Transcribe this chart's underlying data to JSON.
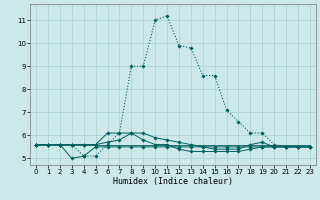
{
  "title": "",
  "xlabel": "Humidex (Indice chaleur)",
  "bg_color": "#cce8e8",
  "grid_color": "#aacfcf",
  "line_color": "#006060",
  "xlim": [
    -0.5,
    23.5
  ],
  "ylim": [
    4.7,
    11.7
  ],
  "xticks": [
    0,
    1,
    2,
    3,
    4,
    5,
    6,
    7,
    8,
    9,
    10,
    11,
    12,
    13,
    14,
    15,
    16,
    17,
    18,
    19,
    20,
    21,
    22,
    23
  ],
  "yticks": [
    5,
    6,
    7,
    8,
    9,
    10,
    11
  ],
  "series": [
    {
      "x": [
        0,
        1,
        2,
        3,
        4,
        5,
        6,
        7,
        8,
        9,
        10,
        11,
        12,
        13,
        14,
        15,
        16,
        17,
        18,
        19,
        20,
        21,
        22,
        23
      ],
      "y": [
        5.6,
        5.6,
        5.6,
        5.6,
        5.1,
        5.1,
        5.6,
        6.1,
        9.0,
        9.0,
        11.0,
        11.2,
        9.9,
        9.8,
        8.6,
        8.6,
        7.1,
        6.6,
        6.1,
        6.1,
        5.6,
        5.5,
        5.5,
        5.5
      ],
      "linestyle": ":",
      "marker": true,
      "lw": 0.8
    },
    {
      "x": [
        0,
        1,
        2,
        3,
        4,
        5,
        6,
        7,
        8,
        9,
        10,
        11,
        12,
        13,
        14,
        15,
        16,
        17,
        18,
        19,
        20,
        21,
        22,
        23
      ],
      "y": [
        5.6,
        5.6,
        5.6,
        5.0,
        5.1,
        5.5,
        5.5,
        5.5,
        5.5,
        5.5,
        5.5,
        5.5,
        5.5,
        5.5,
        5.5,
        5.5,
        5.5,
        5.5,
        5.5,
        5.5,
        5.5,
        5.5,
        5.5,
        5.5
      ],
      "linestyle": "-",
      "marker": true,
      "lw": 0.7
    },
    {
      "x": [
        0,
        1,
        2,
        3,
        4,
        5,
        6,
        7,
        8,
        9,
        10,
        11,
        12,
        13,
        14,
        15,
        16,
        17,
        18,
        19,
        20,
        21,
        22,
        23
      ],
      "y": [
        5.6,
        5.6,
        5.6,
        5.6,
        5.6,
        5.6,
        5.7,
        5.8,
        6.1,
        6.1,
        5.9,
        5.8,
        5.7,
        5.6,
        5.5,
        5.4,
        5.4,
        5.4,
        5.6,
        5.7,
        5.5,
        5.5,
        5.5,
        5.5
      ],
      "linestyle": "-",
      "marker": true,
      "lw": 0.7
    },
    {
      "x": [
        0,
        1,
        2,
        3,
        4,
        5,
        6,
        7,
        8,
        9,
        10,
        11,
        12,
        13,
        14,
        15,
        16,
        17,
        18,
        19,
        20,
        21,
        22,
        23
      ],
      "y": [
        5.6,
        5.6,
        5.6,
        5.6,
        5.6,
        5.6,
        6.1,
        6.1,
        6.1,
        5.8,
        5.6,
        5.6,
        5.4,
        5.3,
        5.3,
        5.3,
        5.3,
        5.3,
        5.4,
        5.5,
        5.5,
        5.5,
        5.5,
        5.5
      ],
      "linestyle": "-",
      "marker": true,
      "lw": 0.7
    },
    {
      "x": [
        0,
        1,
        2,
        3,
        4,
        5,
        6,
        7,
        8,
        9,
        10,
        11,
        12,
        13,
        14,
        15,
        16,
        17,
        18,
        19,
        20,
        21,
        22,
        23
      ],
      "y": [
        5.6,
        5.6,
        5.6,
        5.6,
        5.6,
        5.6,
        5.6,
        5.6,
        5.6,
        5.6,
        5.6,
        5.6,
        5.6,
        5.6,
        5.6,
        5.6,
        5.6,
        5.6,
        5.6,
        5.6,
        5.6,
        5.6,
        5.6,
        5.6
      ],
      "linestyle": "-",
      "marker": false,
      "lw": 0.6
    }
  ]
}
